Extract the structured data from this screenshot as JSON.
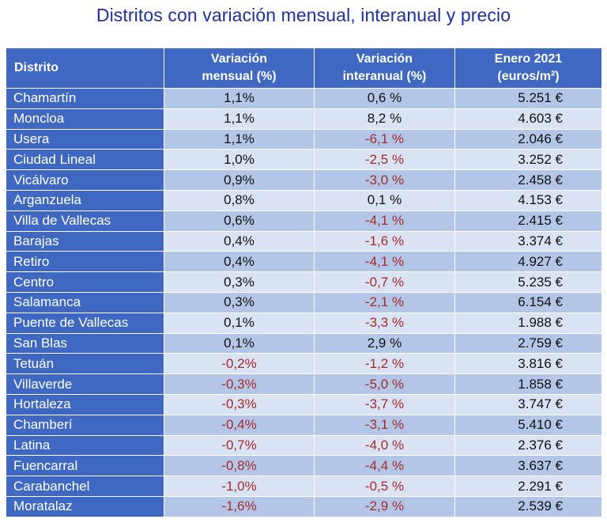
{
  "title": "Distritos con variación mensual, interanual y precio",
  "colors": {
    "header_bg": "#3e68c2",
    "row_dark": "#b4c6e7",
    "row_light": "#dae3f3",
    "negative": "#a52a2a",
    "title": "#1f2f9e"
  },
  "chart_data": {
    "type": "table",
    "columns": [
      {
        "key": "distrito",
        "label_lines": [
          "Distrito"
        ]
      },
      {
        "key": "mensual",
        "label_lines": [
          "Variación",
          "mensual (%)"
        ]
      },
      {
        "key": "interanual",
        "label_lines": [
          "Variación",
          "interanual (%)"
        ]
      },
      {
        "key": "precio",
        "label_lines": [
          "Enero 2021",
          "(euros/m²)"
        ]
      }
    ],
    "rows": [
      {
        "distrito": "Chamartín",
        "mensual": "1,1%",
        "interanual": "0,6 %",
        "precio": "5.251 €"
      },
      {
        "distrito": "Moncloa",
        "mensual": "1,1%",
        "interanual": "8,2 %",
        "precio": "4.603 €"
      },
      {
        "distrito": "Usera",
        "mensual": "1,1%",
        "interanual": "-6,1 %",
        "precio": "2.046 €"
      },
      {
        "distrito": "Ciudad Lineal",
        "mensual": "1,0%",
        "interanual": "-2,5 %",
        "precio": "3.252 €"
      },
      {
        "distrito": "Vicálvaro",
        "mensual": "0,9%",
        "interanual": "-3,0 %",
        "precio": "2.458 €"
      },
      {
        "distrito": "Arganzuela",
        "mensual": "0,8%",
        "interanual": "0,1 %",
        "precio": "4.153 €"
      },
      {
        "distrito": "Villa de Vallecas",
        "mensual": "0,6%",
        "interanual": "-4,1 %",
        "precio": "2.415 €"
      },
      {
        "distrito": "Barajas",
        "mensual": "0,4%",
        "interanual": "-1,6 %",
        "precio": "3.374 €"
      },
      {
        "distrito": "Retiro",
        "mensual": "0,4%",
        "interanual": "-4,1 %",
        "precio": "4.927 €"
      },
      {
        "distrito": "Centro",
        "mensual": "0,3%",
        "interanual": "-0,7 %",
        "precio": "5.235 €"
      },
      {
        "distrito": "Salamanca",
        "mensual": "0,3%",
        "interanual": "-2,1 %",
        "precio": "6.154 €"
      },
      {
        "distrito": "Puente de Vallecas",
        "mensual": "0,1%",
        "interanual": "-3,3 %",
        "precio": "1.988 €"
      },
      {
        "distrito": "San Blas",
        "mensual": "0,1%",
        "interanual": "2,9 %",
        "precio": "2.759 €"
      },
      {
        "distrito": "Tetuán",
        "mensual": "-0,2%",
        "interanual": "-1,2 %",
        "precio": "3.816 €"
      },
      {
        "distrito": "Villaverde",
        "mensual": "-0,3%",
        "interanual": "-5,0 %",
        "precio": "1.858 €"
      },
      {
        "distrito": "Hortaleza",
        "mensual": "-0,3%",
        "interanual": "-3,7 %",
        "precio": "3.747 €"
      },
      {
        "distrito": "Chamberí",
        "mensual": "-0,4%",
        "interanual": "-3,1 %",
        "precio": "5.410 €"
      },
      {
        "distrito": "Latina",
        "mensual": "-0,7%",
        "interanual": "-4,0 %",
        "precio": "2.376 €"
      },
      {
        "distrito": "Fuencarral",
        "mensual": "-0,8%",
        "interanual": "-4,4 %",
        "precio": "3.637 €"
      },
      {
        "distrito": "Carabanchel",
        "mensual": "-1,0%",
        "interanual": "-0,5 %",
        "precio": "2.291 €"
      },
      {
        "distrito": "Moratalaz",
        "mensual": "-1,6%",
        "interanual": "-2,9 %",
        "precio": "2.539 €"
      }
    ]
  }
}
